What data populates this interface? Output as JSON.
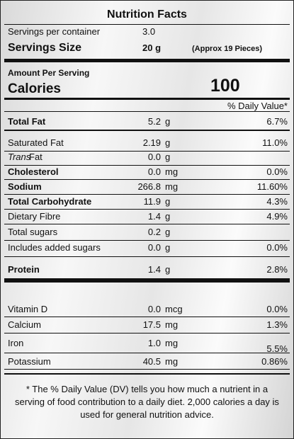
{
  "header": {
    "title": "Nutrition Facts"
  },
  "servings": {
    "per_container_label": "Servings per container",
    "per_container": "3.0",
    "size_label": "Servings Size",
    "size": "20 g",
    "size_note": "(Approx 19 Pieces)"
  },
  "amount_per_serving": "Amount Per Serving",
  "calories": {
    "label": "Calories",
    "value": "100"
  },
  "daily_value_header": "% Daily Value*",
  "nutrients": [
    {
      "name": "Total Fat",
      "amount": "5.2",
      "unit": "g",
      "dv": "6.7%",
      "bold": true
    },
    {
      "name": "Saturated Fat",
      "amount": "2.19",
      "unit": "g",
      "dv": "11.0%"
    },
    {
      "prefix": "Trans",
      "name": "Fat",
      "amount": "0.0",
      "unit": "g"
    },
    {
      "name": "Cholesterol",
      "amount": "0.0",
      "unit": "mg",
      "dv": "0.0%",
      "bold": true
    },
    {
      "name": "Sodium",
      "amount": "266.8",
      "unit": "mg",
      "dv": "11.60%",
      "bold": true
    },
    {
      "name": "Total Carbohydrate",
      "amount": "11.9",
      "unit": "g",
      "dv": "4.3%",
      "bold": true
    },
    {
      "name": "Dietary Fibre",
      "amount": "1.4",
      "unit": "g",
      "dv": "4.9%"
    },
    {
      "name": "Total sugars",
      "amount": "0.2",
      "unit": "g"
    },
    {
      "name": "Includes added sugars",
      "amount": "0.0",
      "unit": "g",
      "dv": "0.0%"
    },
    {
      "name": "Protein",
      "amount": "1.4",
      "unit": "g",
      "dv": "2.8%",
      "bold": true
    }
  ],
  "vitamins": [
    {
      "name": "Vitamin D",
      "amount": "0.0",
      "unit": "mcg",
      "dv": "0.0%"
    },
    {
      "name": "Calcium",
      "amount": "17.5",
      "unit": "mg",
      "dv": "1.3%"
    },
    {
      "name": "Iron",
      "amount": "1.0",
      "unit": "mg",
      "dv": "5.5%"
    },
    {
      "name": "Potassium",
      "amount": "40.5",
      "unit": "mg",
      "dv": "0.86%"
    }
  ],
  "footnote": "* The % Daily Value (DV) tells you how much a nutrient in a serving of food contribution to a daily diet. 2,000 calories a day is used for general nutrition advice."
}
